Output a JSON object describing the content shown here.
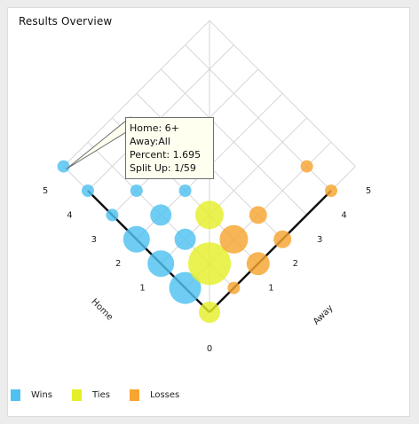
{
  "panel": {
    "title": "Results Overview"
  },
  "colors": {
    "wins": "#4fc1f0",
    "ties": "#e4ef2a",
    "losses": "#f7a530"
  },
  "tooltip": {
    "line1": "Home: 6+",
    "line2": "Away:All",
    "line3": "Percent: 1.695",
    "line4": "Split Up: 1/59"
  },
  "legend": [
    {
      "label": "Wins",
      "color": "#4fc1f0"
    },
    {
      "label": "Ties",
      "color": "#e4ef2a"
    },
    {
      "label": "Losses",
      "color": "#f7a530"
    }
  ],
  "chart_data": {
    "type": "scatter",
    "xlabel": "Home",
    "ylabel": "Away",
    "home_ticks": [
      "1",
      "2",
      "3",
      "4",
      "5"
    ],
    "away_ticks": [
      "1",
      "2",
      "3",
      "4",
      "5"
    ],
    "origin_tick": "0",
    "range": [
      0,
      6
    ],
    "series": [
      {
        "name": "Wins",
        "points": [
          {
            "home": 1,
            "away": 0,
            "size": 18
          },
          {
            "home": 2,
            "away": 0,
            "size": 15
          },
          {
            "home": 3,
            "away": 0,
            "size": 15
          },
          {
            "home": 4,
            "away": 0,
            "size": 7
          },
          {
            "home": 5,
            "away": 0,
            "size": 7
          },
          {
            "home": 2,
            "away": 1,
            "size": 12
          },
          {
            "home": 3,
            "away": 1,
            "size": 12
          },
          {
            "home": 4,
            "away": 1,
            "size": 7
          },
          {
            "home": 6,
            "away": 0,
            "size": 7
          },
          {
            "home": 3,
            "away": 2,
            "size": 7
          },
          {
            "home": 4,
            "away": 2,
            "size": 7
          }
        ]
      },
      {
        "name": "Ties",
        "points": [
          {
            "home": 0,
            "away": 0,
            "size": 12
          },
          {
            "home": 1,
            "away": 1,
            "size": 24
          },
          {
            "home": 2,
            "away": 2,
            "size": 16
          }
        ]
      },
      {
        "name": "Losses",
        "points": [
          {
            "home": 0,
            "away": 1,
            "size": 7
          },
          {
            "home": 0,
            "away": 2,
            "size": 13
          },
          {
            "home": 1,
            "away": 2,
            "size": 16
          },
          {
            "home": 0,
            "away": 3,
            "size": 10
          },
          {
            "home": 0,
            "away": 5,
            "size": 7
          },
          {
            "home": 1,
            "away": 3,
            "size": 10
          },
          {
            "home": 1,
            "away": 5,
            "size": 7
          }
        ]
      }
    ]
  }
}
